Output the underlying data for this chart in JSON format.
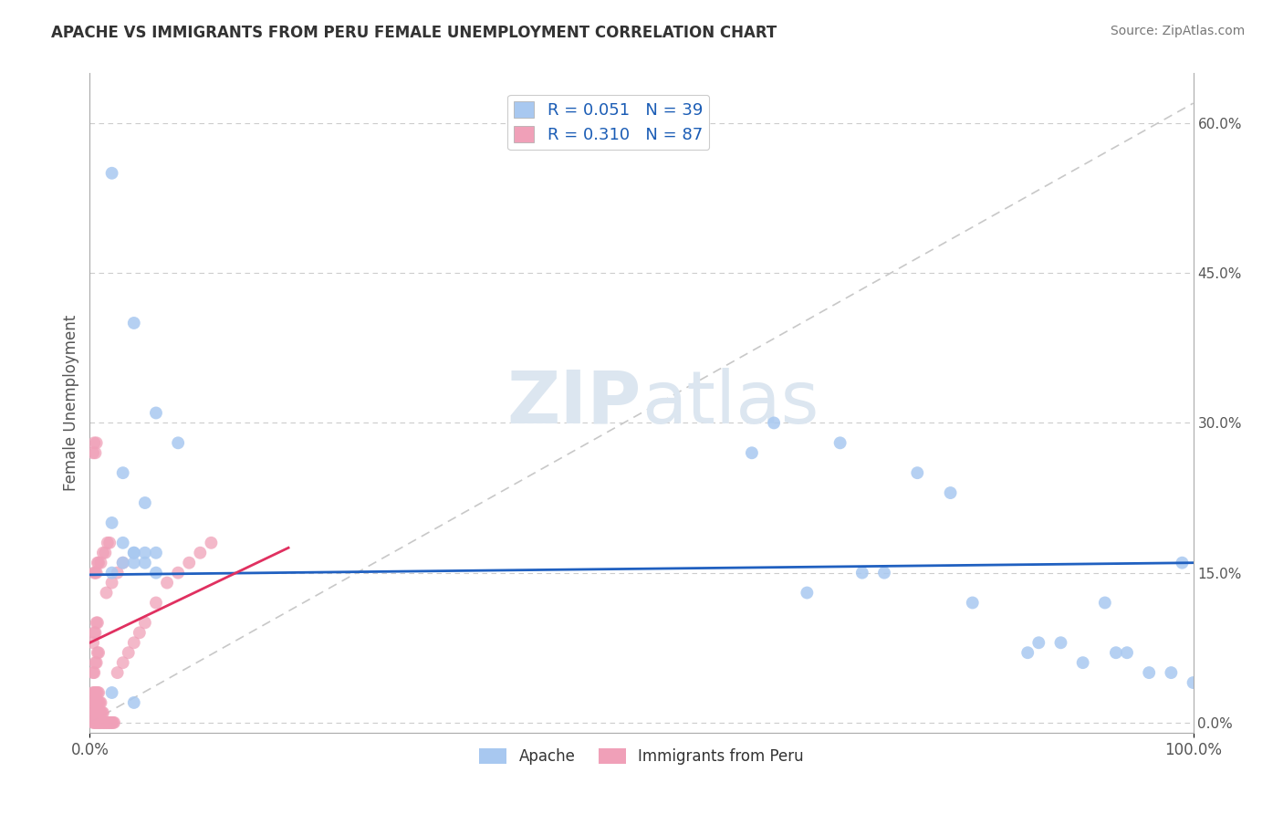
{
  "title": "APACHE VS IMMIGRANTS FROM PERU FEMALE UNEMPLOYMENT CORRELATION CHART",
  "source": "Source: ZipAtlas.com",
  "ylabel": "Female Unemployment",
  "right_yticks": [
    0.0,
    0.15,
    0.3,
    0.45,
    0.6
  ],
  "right_yticklabels": [
    "0.0%",
    "15.0%",
    "30.0%",
    "45.0%",
    "60.0%"
  ],
  "legend_label1": "Apache",
  "legend_label2": "Immigrants from Peru",
  "R1": 0.051,
  "N1": 39,
  "R2": 0.31,
  "N2": 87,
  "color_apache": "#a8c8f0",
  "color_peru": "#f0a0b8",
  "color_apache_line": "#2060c0",
  "color_peru_line": "#e03060",
  "color_diag_line": "#c8c8c8",
  "apache_x": [
    0.02,
    0.04,
    0.06,
    0.08,
    0.03,
    0.05,
    0.02,
    0.03,
    0.04,
    0.05,
    0.04,
    0.06,
    0.02,
    0.04,
    0.06,
    0.03,
    0.05,
    0.02,
    0.04,
    0.6,
    0.65,
    0.68,
    0.72,
    0.75,
    0.8,
    0.85,
    0.88,
    0.9,
    0.92,
    0.94,
    0.96,
    0.98,
    1.0,
    0.62,
    0.7,
    0.78,
    0.86,
    0.93,
    0.99
  ],
  "apache_y": [
    0.55,
    0.4,
    0.31,
    0.28,
    0.25,
    0.22,
    0.2,
    0.18,
    0.17,
    0.16,
    0.16,
    0.15,
    0.15,
    0.17,
    0.17,
    0.16,
    0.17,
    0.03,
    0.02,
    0.27,
    0.13,
    0.28,
    0.15,
    0.25,
    0.12,
    0.07,
    0.08,
    0.06,
    0.12,
    0.07,
    0.05,
    0.05,
    0.04,
    0.3,
    0.15,
    0.23,
    0.08,
    0.07,
    0.16
  ],
  "peru_x": [
    0.003,
    0.004,
    0.005,
    0.006,
    0.007,
    0.008,
    0.009,
    0.01,
    0.011,
    0.012,
    0.013,
    0.014,
    0.015,
    0.016,
    0.017,
    0.018,
    0.019,
    0.02,
    0.021,
    0.022,
    0.003,
    0.004,
    0.005,
    0.006,
    0.007,
    0.008,
    0.009,
    0.01,
    0.011,
    0.012,
    0.003,
    0.004,
    0.005,
    0.006,
    0.007,
    0.008,
    0.009,
    0.01,
    0.003,
    0.004,
    0.005,
    0.006,
    0.007,
    0.008,
    0.025,
    0.03,
    0.035,
    0.04,
    0.045,
    0.05,
    0.06,
    0.07,
    0.08,
    0.09,
    0.1,
    0.11,
    0.015,
    0.02,
    0.025,
    0.03,
    0.01,
    0.012,
    0.014,
    0.016,
    0.018,
    0.004,
    0.005,
    0.006,
    0.007,
    0.008,
    0.003,
    0.004,
    0.005,
    0.006,
    0.003,
    0.004,
    0.005,
    0.006,
    0.007,
    0.003,
    0.004,
    0.005,
    0.006,
    0.007,
    0.008
  ],
  "peru_y": [
    0.0,
    0.0,
    0.0,
    0.0,
    0.0,
    0.0,
    0.0,
    0.0,
    0.0,
    0.0,
    0.0,
    0.0,
    0.0,
    0.0,
    0.0,
    0.0,
    0.0,
    0.0,
    0.0,
    0.0,
    0.01,
    0.01,
    0.01,
    0.01,
    0.01,
    0.01,
    0.01,
    0.01,
    0.01,
    0.01,
    0.02,
    0.02,
    0.02,
    0.02,
    0.02,
    0.02,
    0.02,
    0.02,
    0.03,
    0.03,
    0.03,
    0.03,
    0.03,
    0.03,
    0.05,
    0.06,
    0.07,
    0.08,
    0.09,
    0.1,
    0.12,
    0.14,
    0.15,
    0.16,
    0.17,
    0.18,
    0.13,
    0.14,
    0.15,
    0.16,
    0.16,
    0.17,
    0.17,
    0.18,
    0.18,
    0.15,
    0.15,
    0.15,
    0.16,
    0.16,
    0.27,
    0.28,
    0.27,
    0.28,
    0.08,
    0.09,
    0.09,
    0.1,
    0.1,
    0.05,
    0.05,
    0.06,
    0.06,
    0.07,
    0.07
  ],
  "xlim": [
    0.0,
    1.0
  ],
  "ylim": [
    -0.01,
    0.65
  ],
  "background_color": "#ffffff",
  "watermark_color": "#dce6f0"
}
